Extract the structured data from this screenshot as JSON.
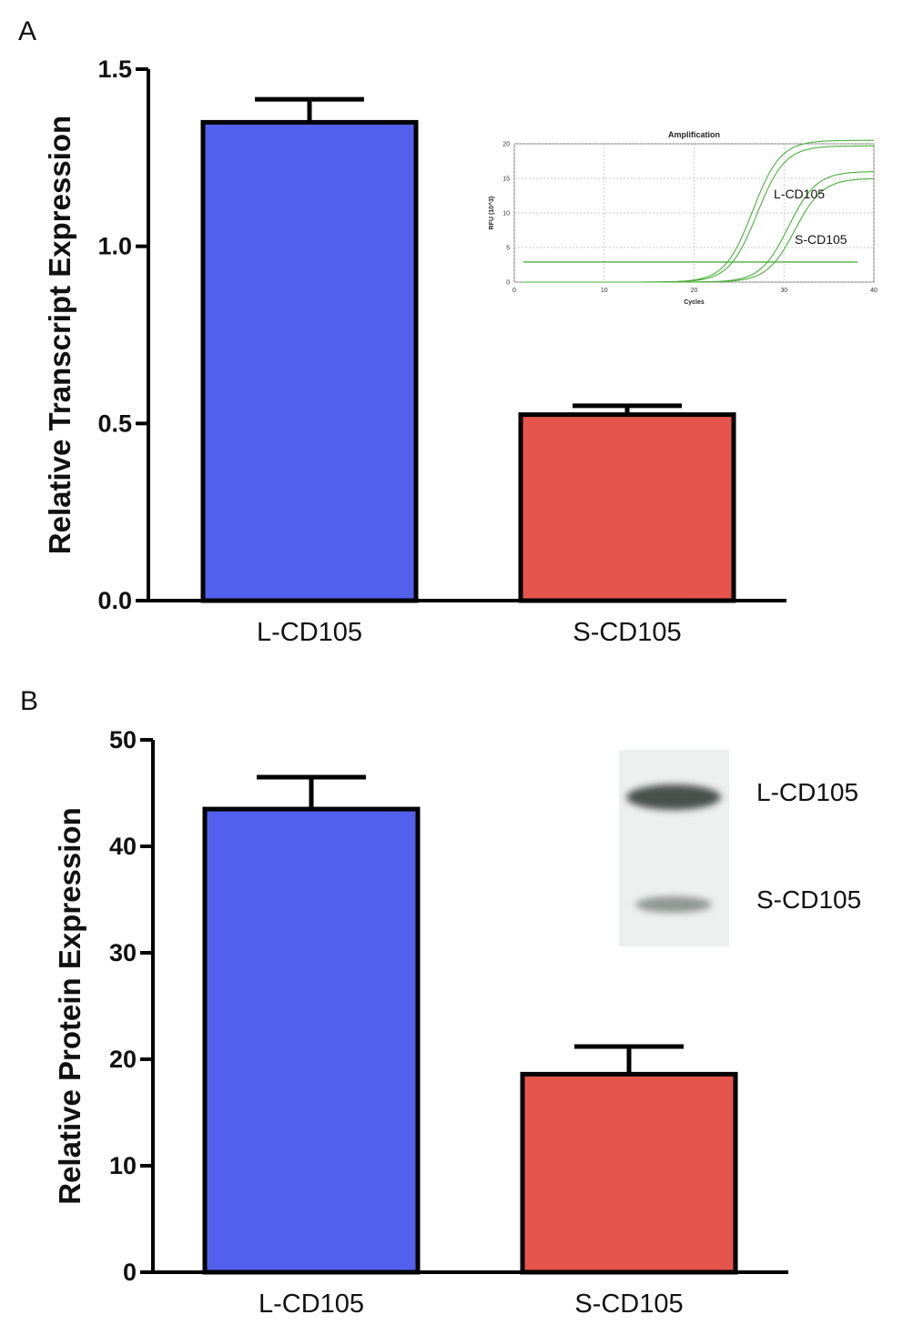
{
  "chart_data": [
    {
      "panel": "A",
      "type": "bar",
      "categories": [
        "L-CD105",
        "S-CD105"
      ],
      "values": [
        1.35,
        0.525
      ],
      "errors": [
        0.065,
        0.025
      ],
      "colors": [
        "#5360ee",
        "#e6554c"
      ],
      "xlabel": "",
      "ylabel": "Relative Transcript Expression",
      "ylim": [
        0,
        1.5
      ],
      "yticks": [
        0.0,
        0.5,
        1.0,
        1.5
      ],
      "ytick_labels": [
        "0.0",
        "0.5",
        "1.0",
        "1.5"
      ],
      "inset": {
        "type": "line",
        "title": "Amplification",
        "xlabel": "Cycles",
        "ylabel": "RFU (10^3)",
        "xlim": [
          0,
          40
        ],
        "ylim": [
          0,
          20
        ],
        "xticks": [
          0,
          10,
          20,
          30,
          40
        ],
        "yticks": [
          0,
          5,
          10,
          15,
          20
        ],
        "threshold": 2.9,
        "line_color": "#4caf3a",
        "series": [
          {
            "name": "L-CD105",
            "label": "L-CD105",
            "midpoint": 26.5,
            "plateau": 20.5
          },
          {
            "name": "L-CD105",
            "label": "",
            "midpoint": 27.0,
            "plateau": 19.7
          },
          {
            "name": "S-CD105",
            "label": "S-CD105",
            "midpoint": 30.5,
            "plateau": 16.0
          },
          {
            "name": "S-CD105",
            "label": "",
            "midpoint": 31.2,
            "plateau": 15.0
          }
        ]
      }
    },
    {
      "panel": "B",
      "type": "bar",
      "categories": [
        "L-CD105",
        "S-CD105"
      ],
      "values": [
        43.5,
        18.6
      ],
      "errors": [
        3.0,
        2.6
      ],
      "colors": [
        "#5360ee",
        "#e6554c"
      ],
      "xlabel": "",
      "ylabel": "Relative Protein Expression",
      "ylim": [
        0,
        50
      ],
      "yticks": [
        0,
        10,
        20,
        30,
        40,
        50
      ],
      "ytick_labels": [
        "0",
        "10",
        "20",
        "30",
        "40",
        "50"
      ],
      "inset": {
        "type": "western-blot",
        "bands": [
          {
            "label": "L-CD105",
            "intensity": 0.85
          },
          {
            "label": "S-CD105",
            "intensity": 0.45
          }
        ]
      }
    }
  ]
}
